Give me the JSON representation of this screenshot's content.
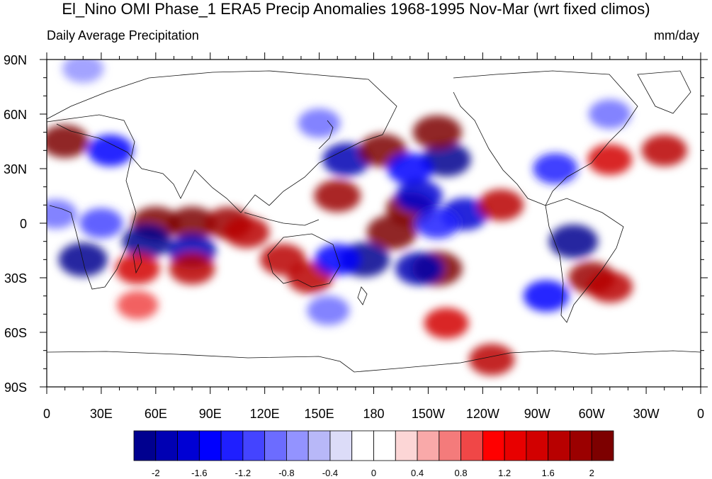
{
  "title": "El_Nino OMI Phase_1 ERA5 Precip Anomalies 1968-1995 Nov-Mar (wrt fixed climos)",
  "left_subtitle": "Daily Average Precipitation",
  "right_subtitle": "mm/day",
  "lat_labels": [
    "90N",
    "60N",
    "30N",
    "0",
    "30S",
    "60S",
    "90S"
  ],
  "lon_labels": [
    "0",
    "30E",
    "60E",
    "90E",
    "120E",
    "150E",
    "180",
    "150W",
    "120W",
    "90W",
    "60W",
    "30W",
    "0"
  ],
  "colorbar": {
    "colors": [
      "#00008f",
      "#0000b3",
      "#0000d4",
      "#0000ff",
      "#1f1fff",
      "#4444ff",
      "#6c6cff",
      "#9393ff",
      "#b8b8f8",
      "#dcdcf8",
      "#ffffff",
      "#ffffff",
      "#fcd6d6",
      "#f9a9a9",
      "#f47b7b",
      "#f04747",
      "#ff0000",
      "#e80000",
      "#d20000",
      "#b80000",
      "#9b0000",
      "#7d0000"
    ],
    "tick_labels": [
      "-2",
      "-1.6",
      "-1.2",
      "-0.8",
      "-0.4",
      "0",
      "0.4",
      "0.8",
      "1.2",
      "1.6",
      "2"
    ]
  },
  "map_data": {
    "lat_range": [
      -90,
      90
    ],
    "lon_range": [
      0,
      360
    ],
    "anomalies": [
      {
        "lon": 190,
        "lat": -5,
        "value": 2.4
      },
      {
        "lon": 200,
        "lat": 8,
        "value": 2.0
      },
      {
        "lon": 160,
        "lat": 15,
        "value": 1.8
      },
      {
        "lon": 215,
        "lat": -25,
        "value": 2.4
      },
      {
        "lon": 175,
        "lat": -20,
        "value": -2.4
      },
      {
        "lon": 205,
        "lat": -25,
        "value": -2.0
      },
      {
        "lon": 130,
        "lat": -20,
        "value": 1.6
      },
      {
        "lon": 60,
        "lat": 0,
        "value": 2.0
      },
      {
        "lon": 80,
        "lat": 0,
        "value": 2.0
      },
      {
        "lon": 100,
        "lat": 0,
        "value": 1.8
      },
      {
        "lon": 110,
        "lat": -5,
        "value": 1.6
      },
      {
        "lon": 55,
        "lat": -10,
        "value": -2.2
      },
      {
        "lon": 80,
        "lat": -15,
        "value": -2.0
      },
      {
        "lon": 20,
        "lat": -20,
        "value": -2.2
      },
      {
        "lon": 30,
        "lat": 0,
        "value": -1.2
      },
      {
        "lon": 50,
        "lat": -25,
        "value": 1.4
      },
      {
        "lon": 80,
        "lat": -25,
        "value": 1.6
      },
      {
        "lon": 145,
        "lat": -30,
        "value": 1.6
      },
      {
        "lon": 160,
        "lat": -20,
        "value": -1.6
      },
      {
        "lon": 165,
        "lat": 35,
        "value": -2.0
      },
      {
        "lon": 185,
        "lat": 40,
        "value": 2.0
      },
      {
        "lon": 220,
        "lat": 35,
        "value": -2.2
      },
      {
        "lon": 215,
        "lat": 50,
        "value": 2.2
      },
      {
        "lon": 200,
        "lat": 30,
        "value": -1.6
      },
      {
        "lon": 205,
        "lat": 15,
        "value": -1.8
      },
      {
        "lon": 230,
        "lat": 5,
        "value": -1.8
      },
      {
        "lon": 250,
        "lat": 10,
        "value": 1.6
      },
      {
        "lon": 215,
        "lat": 0,
        "value": -1.4
      },
      {
        "lon": 290,
        "lat": -10,
        "value": -2.2
      },
      {
        "lon": 300,
        "lat": -30,
        "value": 1.8
      },
      {
        "lon": 310,
        "lat": -35,
        "value": 1.6
      },
      {
        "lon": 275,
        "lat": -40,
        "value": -1.6
      },
      {
        "lon": 310,
        "lat": 35,
        "value": 1.4
      },
      {
        "lon": 280,
        "lat": 30,
        "value": -1.4
      },
      {
        "lon": 340,
        "lat": 40,
        "value": 1.6
      },
      {
        "lon": 10,
        "lat": 45,
        "value": 2.0
      },
      {
        "lon": 35,
        "lat": 40,
        "value": -1.6
      },
      {
        "lon": 5,
        "lat": 5,
        "value": -1.0
      },
      {
        "lon": 245,
        "lat": -75,
        "value": 1.6
      },
      {
        "lon": 220,
        "lat": -55,
        "value": 1.4
      },
      {
        "lon": 155,
        "lat": -48,
        "value": -1.0
      },
      {
        "lon": 50,
        "lat": -45,
        "value": 0.8
      },
      {
        "lon": 310,
        "lat": 60,
        "value": -1.0
      },
      {
        "lon": 20,
        "lat": 85,
        "value": -0.8
      },
      {
        "lon": 150,
        "lat": 55,
        "value": -1.0
      }
    ]
  }
}
